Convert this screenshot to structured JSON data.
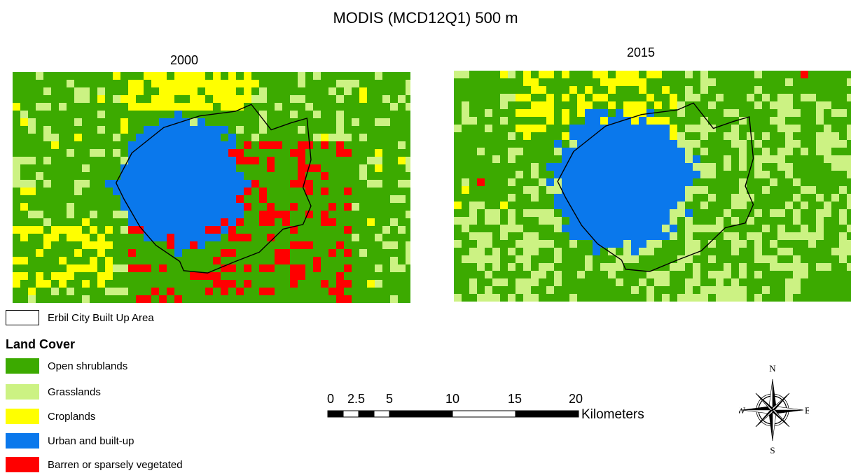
{
  "title": "MODIS (MCD12Q1) 500 m",
  "panels": [
    {
      "label": "2000"
    },
    {
      "label": "2015"
    }
  ],
  "colors": {
    "open_shrublands": "#3caa00",
    "grasslands": "#ccf283",
    "croplands": "#ffff00",
    "urban": "#0a78ec",
    "barren": "#ff0000",
    "boundary": "#000000"
  },
  "legend": {
    "boundary_label": "Erbil City Built Up Area",
    "heading": "Land Cover",
    "items": [
      {
        "label": "Open shrublands",
        "color": "#3caa00"
      },
      {
        "label": "Grasslands",
        "color": "#ccf283"
      },
      {
        "label": "Croplands",
        "color": "#ffff00"
      },
      {
        "label": "Urban and built-up",
        "color": "#0a78ec"
      },
      {
        "label": "Barren or sparsely vegetated",
        "color": "#ff0000"
      }
    ]
  },
  "scalebar": {
    "ticks": [
      "0",
      "2.5",
      "5",
      "10",
      "15",
      "20"
    ],
    "unit": "Kilometers"
  },
  "compass": {
    "n": "N",
    "s": "S",
    "e": "E",
    "w": "W"
  }
}
